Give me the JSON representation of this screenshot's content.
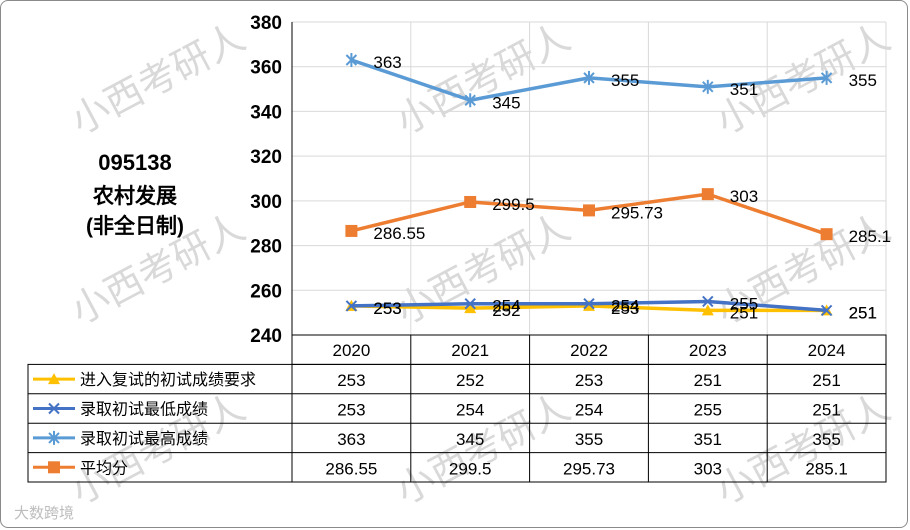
{
  "chart_title": {
    "code": "095138",
    "name": "农村发展",
    "mode": "(非全日制)"
  },
  "watermark": {
    "text": "小西考研人",
    "footer": "大数跨境"
  },
  "chart_data": {
    "type": "line",
    "categories": [
      "2020",
      "2021",
      "2022",
      "2023",
      "2024"
    ],
    "ylim": [
      240,
      380
    ],
    "yticks": [
      240,
      260,
      280,
      300,
      320,
      340,
      360,
      380
    ],
    "grid": true,
    "legend": "data-table-left",
    "series": [
      {
        "name": "进入复试的初试成绩要求",
        "values": [
          253,
          252,
          253,
          251,
          251
        ],
        "labels": [
          "253",
          "252",
          "253",
          "251",
          "251"
        ],
        "color": "#FFC000",
        "marker": "triangle"
      },
      {
        "name": "录取初试最低成绩",
        "values": [
          253,
          254,
          254,
          255,
          251
        ],
        "labels": [
          "253",
          "254",
          "254",
          "255",
          "251"
        ],
        "color": "#4472C4",
        "marker": "x"
      },
      {
        "name": "录取初试最高成绩",
        "values": [
          363,
          345,
          355,
          351,
          355
        ],
        "labels": [
          "363",
          "345",
          "355",
          "351",
          "355"
        ],
        "color": "#5B9BD5",
        "marker": "star"
      },
      {
        "name": "平均分",
        "values": [
          286.55,
          299.5,
          295.73,
          303,
          285.1
        ],
        "labels": [
          "286.55",
          "299.5",
          "295.73",
          "303",
          "285.1"
        ],
        "color": "#ED7D31",
        "marker": "square"
      }
    ]
  }
}
